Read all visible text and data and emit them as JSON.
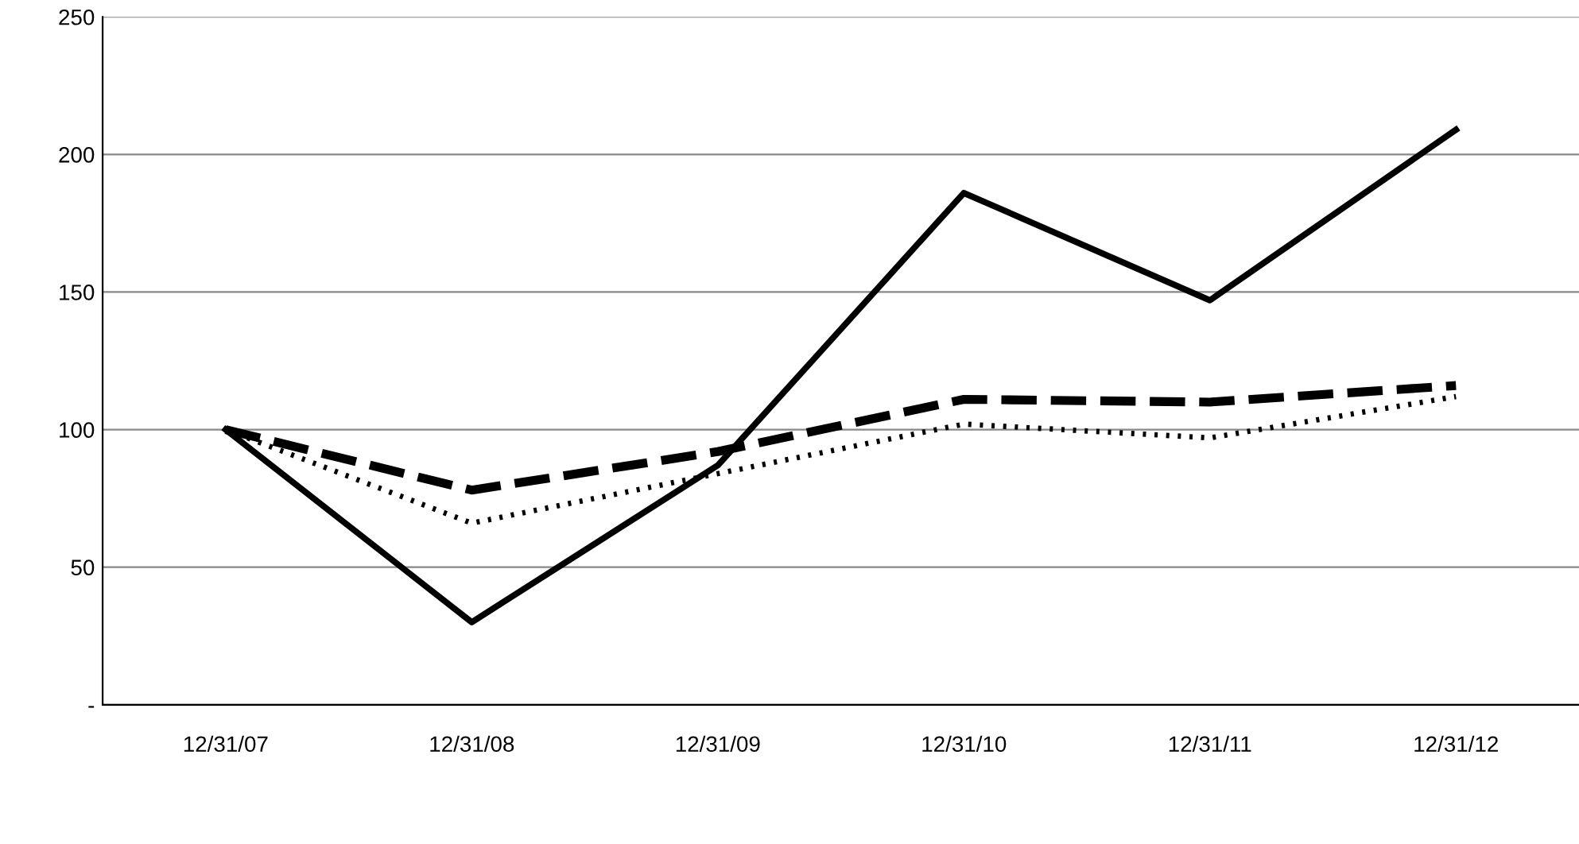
{
  "chart_data": {
    "type": "line",
    "categories": [
      "12/31/07",
      "12/31/08",
      "12/31/09",
      "12/31/10",
      "12/31/11",
      "12/31/12"
    ],
    "series": [
      {
        "color": "#000000",
        "line_style": "solid",
        "values": [
          100,
          30,
          87,
          186,
          147,
          209
        ]
      },
      {
        "color": "#000000",
        "line_style": "dotted",
        "values": [
          100,
          66,
          84,
          102,
          97,
          112
        ]
      },
      {
        "color": "#000000",
        "line_style": "dashed",
        "values": [
          100,
          78,
          92,
          111,
          110,
          116
        ]
      }
    ],
    "ylim": [
      0,
      250
    ],
    "yticks": [
      {
        "value": 0,
        "label": "-"
      },
      50,
      100,
      150,
      200,
      250
    ],
    "grid": "y",
    "legend": false,
    "marker": "none"
  }
}
